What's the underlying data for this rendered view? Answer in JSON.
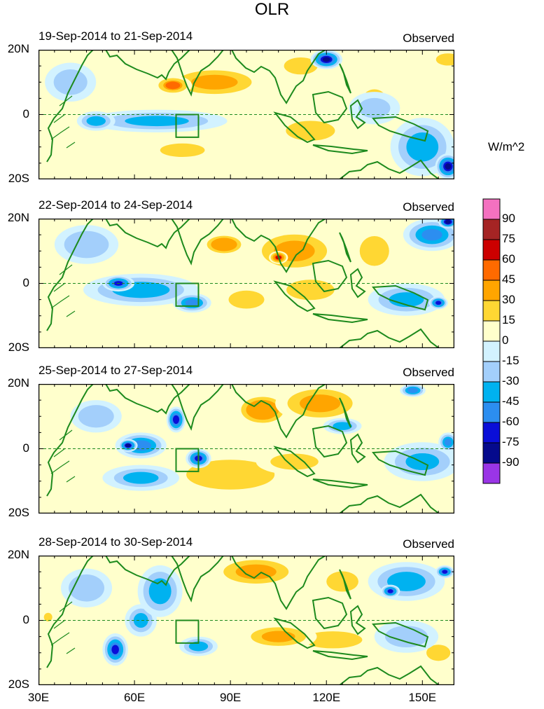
{
  "title": "OLR",
  "units": "W/m^2",
  "chart_data": {
    "type": "heatmap",
    "title": "OLR",
    "units": "W/m^2",
    "xlim": [
      30,
      160
    ],
    "ylim": [
      -20,
      20
    ],
    "x_ticks": [
      30,
      60,
      90,
      120,
      150
    ],
    "x_tick_labels": [
      "30E",
      "60E",
      "90E",
      "120E",
      "150E"
    ],
    "y_tick_labels": [
      "20N",
      "0",
      "20S"
    ],
    "colorbar": {
      "levels": [
        -90,
        -75,
        -60,
        -45,
        -30,
        -15,
        0,
        15,
        30,
        45,
        60,
        75,
        90
      ],
      "labels": [
        "90",
        "75",
        "60",
        "45",
        "30",
        "15",
        "0",
        "-15",
        "-30",
        "-45",
        "-60",
        "-75",
        "-90"
      ],
      "colors_top_to_bottom": [
        "#f471c0",
        "#a52424",
        "#cc0000",
        "#ff6a00",
        "#ffa500",
        "#ffd733",
        "#ffffcc",
        "#d2f2ff",
        "#a3cffb",
        "#00b2f0",
        "#2c8ef0",
        "#0a0ed8",
        "#050a8c",
        "#9a35e6"
      ]
    },
    "panels": [
      {
        "title": "19-Sep-2014 to 21-Sep-2014",
        "label": "Observed",
        "anomalies": [
          {
            "lon": 85,
            "lat": 10,
            "rx": 16,
            "ry": 5,
            "v": 40
          },
          {
            "lon": 72,
            "lat": 9,
            "rx": 6,
            "ry": 3,
            "v": 45
          },
          {
            "lon": 112,
            "lat": 15,
            "rx": 8,
            "ry": 4,
            "v": 20
          },
          {
            "lon": 135,
            "lat": 5,
            "rx": 5,
            "ry": 4,
            "v": 18
          },
          {
            "lon": 158,
            "lat": 17,
            "rx": 6,
            "ry": 3,
            "v": 25
          },
          {
            "lon": 75,
            "lat": -11,
            "rx": 10,
            "ry": 3,
            "v": 18
          },
          {
            "lon": 115,
            "lat": -5,
            "rx": 10,
            "ry": 4,
            "v": 15
          },
          {
            "lon": 67,
            "lat": -2,
            "rx": 22,
            "ry": 3.5,
            "v": -40
          },
          {
            "lon": 48,
            "lat": -2,
            "rx": 6,
            "ry": 3,
            "v": -45
          },
          {
            "lon": 120,
            "lat": 17,
            "rx": 5,
            "ry": 3,
            "v": -80
          },
          {
            "lon": 150,
            "lat": -10,
            "rx": 10,
            "ry": 9,
            "v": -45
          },
          {
            "lon": 158,
            "lat": -16,
            "rx": 4,
            "ry": 4,
            "v": -80
          },
          {
            "lon": 135,
            "lat": 2,
            "rx": 8,
            "ry": 5,
            "v": -22
          },
          {
            "lon": 40,
            "lat": 10,
            "rx": 8,
            "ry": 6,
            "v": -20
          }
        ]
      },
      {
        "title": "22-Sep-2014 to 24-Sep-2014",
        "label": "Observed",
        "anomalies": [
          {
            "lon": 110,
            "lat": 10,
            "rx": 14,
            "ry": 7,
            "v": 40
          },
          {
            "lon": 105,
            "lat": 8,
            "rx": 3,
            "ry": 2,
            "v": 62
          },
          {
            "lon": 88,
            "lat": 12,
            "rx": 8,
            "ry": 4,
            "v": 30
          },
          {
            "lon": 115,
            "lat": -2,
            "rx": 12,
            "ry": 5,
            "v": 25
          },
          {
            "lon": 95,
            "lat": -5,
            "rx": 8,
            "ry": 4,
            "v": 18
          },
          {
            "lon": 135,
            "lat": 10,
            "rx": 6,
            "ry": 6,
            "v": 15
          },
          {
            "lon": 62,
            "lat": -2,
            "rx": 18,
            "ry": 5,
            "v": -45
          },
          {
            "lon": 55,
            "lat": 0,
            "rx": 5,
            "ry": 2.5,
            "v": -65
          },
          {
            "lon": 78,
            "lat": -6,
            "rx": 6,
            "ry": 3,
            "v": -55
          },
          {
            "lon": 153,
            "lat": 15,
            "rx": 9,
            "ry": 5,
            "v": -55
          },
          {
            "lon": 158,
            "lat": 19,
            "rx": 3,
            "ry": 2,
            "v": -90
          },
          {
            "lon": 145,
            "lat": -5,
            "rx": 12,
            "ry": 5,
            "v": -40
          },
          {
            "lon": 155,
            "lat": -6,
            "rx": 3,
            "ry": 2,
            "v": -70
          },
          {
            "lon": 45,
            "lat": 12,
            "rx": 10,
            "ry": 6,
            "v": -18
          }
        ]
      },
      {
        "title": "25-Sep-2014 to 27-Sep-2014",
        "label": "Observed",
        "anomalies": [
          {
            "lon": 118,
            "lat": 14,
            "rx": 14,
            "ry": 6,
            "v": 40
          },
          {
            "lon": 100,
            "lat": 12,
            "rx": 10,
            "ry": 6,
            "v": 30
          },
          {
            "lon": 110,
            "lat": -4,
            "rx": 12,
            "ry": 4,
            "v": 25
          },
          {
            "lon": 90,
            "lat": -8,
            "rx": 18,
            "ry": 6,
            "v": 15
          },
          {
            "lon": 62,
            "lat": 1,
            "rx": 8,
            "ry": 4,
            "v": -60
          },
          {
            "lon": 58,
            "lat": 1,
            "rx": 3,
            "ry": 2,
            "v": -80
          },
          {
            "lon": 73,
            "lat": 9,
            "rx": 3,
            "ry": 4,
            "v": -75
          },
          {
            "lon": 80,
            "lat": -3,
            "rx": 4,
            "ry": 3,
            "v": -70
          },
          {
            "lon": 62,
            "lat": -9,
            "rx": 12,
            "ry": 4,
            "v": -35
          },
          {
            "lon": 125,
            "lat": 7,
            "rx": 6,
            "ry": 2.5,
            "v": -45
          },
          {
            "lon": 150,
            "lat": -4,
            "rx": 12,
            "ry": 6,
            "v": -38
          },
          {
            "lon": 147,
            "lat": 18,
            "rx": 4,
            "ry": 2,
            "v": -60
          },
          {
            "lon": 158,
            "lat": 2,
            "rx": 3,
            "ry": 3,
            "v": -55
          },
          {
            "lon": 48,
            "lat": 10,
            "rx": 8,
            "ry": 5,
            "v": -18
          }
        ]
      },
      {
        "title": "28-Sep-2014 to 30-Sep-2014",
        "label": "Observed",
        "anomalies": [
          {
            "lon": 98,
            "lat": 15,
            "rx": 14,
            "ry": 5,
            "v": 40
          },
          {
            "lon": 105,
            "lat": -5,
            "rx": 12,
            "ry": 4,
            "v": 38
          },
          {
            "lon": 125,
            "lat": 12,
            "rx": 8,
            "ry": 5,
            "v": 25
          },
          {
            "lon": 122,
            "lat": -6,
            "rx": 14,
            "ry": 4,
            "v": 20
          },
          {
            "lon": 155,
            "lat": -10,
            "rx": 6,
            "ry": 4,
            "v": 25
          },
          {
            "lon": 33,
            "lat": 1,
            "rx": 2,
            "ry": 2,
            "v": 20
          },
          {
            "lon": 68,
            "lat": 9,
            "rx": 7,
            "ry": 8,
            "v": -45
          },
          {
            "lon": 62,
            "lat": 0,
            "rx": 5,
            "ry": 5,
            "v": -40
          },
          {
            "lon": 54,
            "lat": -9,
            "rx": 4,
            "ry": 5,
            "v": -65
          },
          {
            "lon": 80,
            "lat": -8,
            "rx": 6,
            "ry": 3,
            "v": -45
          },
          {
            "lon": 145,
            "lat": 12,
            "rx": 12,
            "ry": 6,
            "v": -45
          },
          {
            "lon": 140,
            "lat": 9,
            "rx": 3,
            "ry": 2,
            "v": -70
          },
          {
            "lon": 157,
            "lat": 15,
            "rx": 3,
            "ry": 2,
            "v": -65
          },
          {
            "lon": 145,
            "lat": -5,
            "rx": 10,
            "ry": 5,
            "v": -30
          },
          {
            "lon": 45,
            "lat": 10,
            "rx": 8,
            "ry": 6,
            "v": -18
          }
        ]
      }
    ]
  }
}
